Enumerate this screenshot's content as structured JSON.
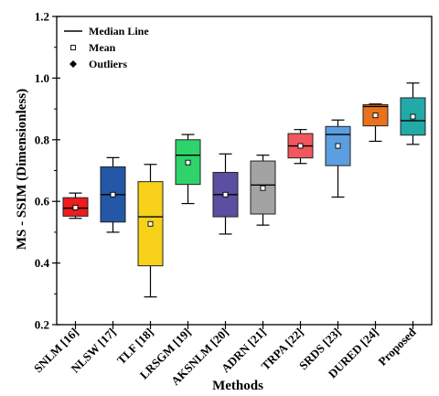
{
  "chart_data": {
    "type": "box",
    "xlabel": "Methods",
    "ylabel": "MS - SSIM (Dimensionless)",
    "ylim": [
      0.2,
      1.2
    ],
    "yticks": [
      0.2,
      0.4,
      0.6,
      0.8,
      1.0,
      1.2
    ],
    "ytick_labels": [
      "0.2",
      "0.4",
      "0.6",
      "0.8",
      "1.0",
      "1.2"
    ],
    "grid": false,
    "legend_position": "top-left",
    "legend": [
      {
        "label": "Median Line",
        "marker": "line"
      },
      {
        "label": "Mean",
        "marker": "open-square"
      },
      {
        "label": "Outliers",
        "marker": "diamond"
      }
    ],
    "categories": [
      "SNLM [16]",
      "NLSW [17]",
      "TLF [18]",
      "LRSGM [19]",
      "AKSNLM [20]",
      "ADRN [21]",
      "TRPA [22]",
      "SRDS [23]",
      "DURED [24]",
      "Proposed"
    ],
    "boxes": [
      {
        "min": 0.545,
        "q1": 0.552,
        "median": 0.578,
        "q3": 0.612,
        "max": 0.627,
        "mean": 0.58,
        "color": "#ee1c1c"
      },
      {
        "min": 0.5,
        "q1": 0.533,
        "median": 0.622,
        "q3": 0.712,
        "max": 0.742,
        "mean": 0.622,
        "color": "#2458a6"
      },
      {
        "min": 0.29,
        "q1": 0.391,
        "median": 0.55,
        "q3": 0.664,
        "max": 0.72,
        "mean": 0.527,
        "color": "#f7d11a"
      },
      {
        "min": 0.593,
        "q1": 0.655,
        "median": 0.75,
        "q3": 0.8,
        "max": 0.817,
        "mean": 0.726,
        "color": "#2ed36b"
      },
      {
        "min": 0.494,
        "q1": 0.55,
        "median": 0.622,
        "q3": 0.694,
        "max": 0.754,
        "mean": 0.622,
        "color": "#5a4fa0"
      },
      {
        "min": 0.523,
        "q1": 0.559,
        "median": 0.653,
        "q3": 0.731,
        "max": 0.75,
        "mean": 0.643,
        "color": "#a3a3a3"
      },
      {
        "min": 0.723,
        "q1": 0.741,
        "median": 0.78,
        "q3": 0.82,
        "max": 0.833,
        "mean": 0.78,
        "color": "#f2565e"
      },
      {
        "min": 0.614,
        "q1": 0.716,
        "median": 0.817,
        "q3": 0.843,
        "max": 0.864,
        "mean": 0.78,
        "color": "#5b9fe0"
      },
      {
        "min": 0.795,
        "q1": 0.845,
        "median": 0.908,
        "q3": 0.914,
        "max": 0.916,
        "mean": 0.879,
        "color": "#e8731c"
      },
      {
        "min": 0.785,
        "q1": 0.815,
        "median": 0.862,
        "q3": 0.936,
        "max": 0.984,
        "mean": 0.875,
        "color": "#21aaa8"
      }
    ]
  }
}
